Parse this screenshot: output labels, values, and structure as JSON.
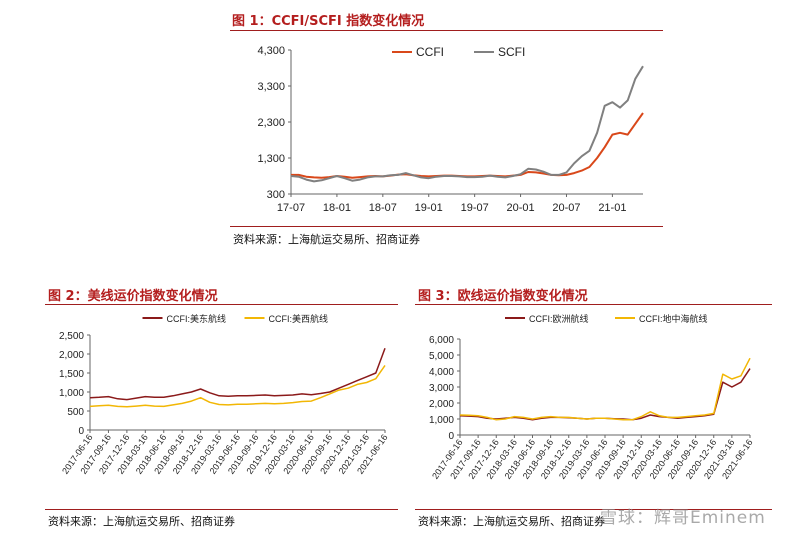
{
  "chart_data": [
    {
      "type": "line",
      "title": "图 1：CCFI/SCFI 指数变化情况",
      "source": "资料来源：上海航运交易所、招商证券",
      "legend": [
        "CCFI",
        "SCFI"
      ],
      "legend_position": "top-center",
      "y_ticks": [
        "4,300",
        "3,300",
        "2,300",
        "1,300",
        "300"
      ],
      "x_ticks": [
        "17-07",
        "18-01",
        "18-07",
        "19-01",
        "19-07",
        "20-01",
        "20-07",
        "21-01"
      ],
      "ylim": [
        300,
        4300
      ],
      "xlim": [
        0,
        46
      ],
      "colors": [
        "#d9481a",
        "#808080"
      ],
      "series": [
        {
          "name": "CCFI",
          "x": [
            0,
            1,
            2,
            3,
            4,
            5,
            6,
            7,
            8,
            9,
            10,
            11,
            12,
            13,
            14,
            15,
            16,
            17,
            18,
            19,
            20,
            21,
            22,
            23,
            24,
            25,
            26,
            27,
            28,
            29,
            30,
            31,
            32,
            33,
            34,
            35,
            36,
            37,
            38,
            39,
            40,
            41,
            42,
            43,
            44,
            45,
            46
          ],
          "values": [
            830,
            830,
            780,
            760,
            750,
            770,
            800,
            780,
            750,
            770,
            790,
            800,
            790,
            810,
            840,
            850,
            820,
            800,
            790,
            800,
            810,
            810,
            800,
            790,
            790,
            800,
            810,
            800,
            790,
            810,
            830,
            910,
            900,
            870,
            830,
            820,
            830,
            880,
            950,
            1050,
            1300,
            1600,
            1950,
            2000,
            1950,
            2250,
            2550
          ]
        },
        {
          "name": "SCFI",
          "x": [
            0,
            1,
            2,
            3,
            4,
            5,
            6,
            7,
            8,
            9,
            10,
            11,
            12,
            13,
            14,
            15,
            16,
            17,
            18,
            19,
            20,
            21,
            22,
            23,
            24,
            25,
            26,
            27,
            28,
            29,
            30,
            31,
            32,
            33,
            34,
            35,
            36,
            37,
            38,
            39,
            40,
            41,
            42,
            43,
            44,
            45,
            46
          ],
          "values": [
            800,
            780,
            700,
            650,
            680,
            740,
            800,
            740,
            670,
            700,
            760,
            790,
            790,
            820,
            830,
            880,
            820,
            760,
            740,
            780,
            800,
            800,
            790,
            770,
            770,
            780,
            810,
            780,
            760,
            800,
            850,
            1000,
            980,
            920,
            830,
            830,
            900,
            1150,
            1350,
            1500,
            2000,
            2750,
            2850,
            2700,
            2900,
            3500,
            3850
          ]
        }
      ]
    },
    {
      "type": "line",
      "title": "图 2：美线运价指数变化情况",
      "source": "资料来源：上海航运交易所、招商证券",
      "legend": [
        "CCFI:美东航线",
        "CCFI:美西航线"
      ],
      "legend_position": "top-center",
      "y_ticks": [
        "2,500",
        "2,000",
        "1,500",
        "1,000",
        "500",
        "0"
      ],
      "x_ticks": [
        "2017-06-16",
        "2017-09-16",
        "2017-12-16",
        "2018-03-16",
        "2018-06-16",
        "2018-09-16",
        "2018-12-16",
        "2019-03-16",
        "2019-06-16",
        "2019-09-16",
        "2019-12-16",
        "2020-03-16",
        "2020-06-16",
        "2020-09-16",
        "2020-12-16",
        "2021-03-16",
        "2021-06-16"
      ],
      "ylim": [
        0,
        2500
      ],
      "xlim": [
        0,
        16
      ],
      "colors": [
        "#8b1a1a",
        "#f2b705"
      ],
      "series": [
        {
          "name": "CCFI:美东航线",
          "x": [
            0,
            0.5,
            1,
            1.5,
            2,
            2.5,
            3,
            3.5,
            4,
            4.5,
            5,
            5.5,
            6,
            6.5,
            7,
            7.5,
            8,
            8.5,
            9,
            9.5,
            10,
            10.5,
            11,
            11.5,
            12,
            12.5,
            13,
            13.5,
            14,
            14.5,
            15,
            15.5,
            16
          ],
          "values": [
            850,
            860,
            880,
            820,
            800,
            840,
            880,
            860,
            860,
            900,
            950,
            1000,
            1080,
            980,
            900,
            890,
            900,
            900,
            910,
            920,
            900,
            910,
            920,
            950,
            930,
            960,
            1000,
            1100,
            1200,
            1300,
            1400,
            1500,
            2150
          ]
        },
        {
          "name": "CCFI:美西航线",
          "x": [
            0,
            0.5,
            1,
            1.5,
            2,
            2.5,
            3,
            3.5,
            4,
            4.5,
            5,
            5.5,
            6,
            6.5,
            7,
            7.5,
            8,
            8.5,
            9,
            9.5,
            10,
            10.5,
            11,
            11.5,
            12,
            12.5,
            13,
            13.5,
            14,
            14.5,
            15,
            15.5,
            16
          ],
          "values": [
            620,
            640,
            650,
            620,
            610,
            630,
            650,
            630,
            620,
            660,
            700,
            760,
            850,
            730,
            670,
            660,
            680,
            680,
            690,
            700,
            690,
            700,
            720,
            750,
            760,
            850,
            950,
            1050,
            1100,
            1200,
            1250,
            1350,
            1700
          ]
        }
      ]
    },
    {
      "type": "line",
      "title": "图 3：欧线运价指数变化情况",
      "source": "资料来源：上海航运交易所、招商证券",
      "legend": [
        "CCFI:欧洲航线",
        "CCFI:地中海航线"
      ],
      "legend_position": "top-center",
      "y_ticks": [
        "6,000",
        "5,000",
        "4,000",
        "3,000",
        "2,000",
        "1,000",
        "0"
      ],
      "x_ticks": [
        "2017-06-16",
        "2017-09-16",
        "2017-12-16",
        "2018-03-16",
        "2018-06-16",
        "2018-09-16",
        "2018-12-16",
        "2019-03-16",
        "2019-06-16",
        "2019-09-16",
        "2019-12-16",
        "2020-03-16",
        "2020-06-16",
        "2020-09-16",
        "2020-12-16",
        "2021-03-16",
        "2021-06-16"
      ],
      "ylim": [
        0,
        6000
      ],
      "xlim": [
        0,
        16
      ],
      "colors": [
        "#8b1a1a",
        "#f2b705"
      ],
      "series": [
        {
          "name": "CCFI:欧洲航线",
          "x": [
            0,
            0.5,
            1,
            1.5,
            2,
            2.5,
            3,
            3.5,
            4,
            4.5,
            5,
            5.5,
            6,
            6.5,
            7,
            7.5,
            8,
            8.5,
            9,
            9.5,
            10,
            10.5,
            11,
            11.5,
            12,
            12.5,
            13,
            13.5,
            14,
            14.5,
            15,
            15.5,
            16
          ],
          "values": [
            1200,
            1180,
            1150,
            1050,
            1000,
            1050,
            1100,
            1050,
            950,
            1050,
            1100,
            1100,
            1080,
            1050,
            1000,
            1050,
            1050,
            1020,
            1000,
            950,
            1050,
            1250,
            1150,
            1100,
            1050,
            1100,
            1150,
            1200,
            1300,
            3300,
            3000,
            3300,
            4150
          ]
        },
        {
          "name": "CCFI:地中海航线",
          "x": [
            0,
            0.5,
            1,
            1.5,
            2,
            2.5,
            3,
            3.5,
            4,
            4.5,
            5,
            5.5,
            6,
            6.5,
            7,
            7.5,
            8,
            8.5,
            9,
            9.5,
            10,
            10.5,
            11,
            11.5,
            12,
            12.5,
            13,
            13.5,
            14,
            14.5,
            15,
            15.5,
            16
          ],
          "values": [
            1250,
            1230,
            1200,
            1100,
            950,
            1000,
            1150,
            1100,
            1000,
            1100,
            1150,
            1100,
            1100,
            1050,
            1000,
            1050,
            1050,
            1000,
            950,
            950,
            1150,
            1450,
            1200,
            1100,
            1100,
            1150,
            1200,
            1250,
            1350,
            3800,
            3500,
            3700,
            4800
          ]
        }
      ]
    }
  ],
  "watermark": "雪球：辉哥Eminem"
}
